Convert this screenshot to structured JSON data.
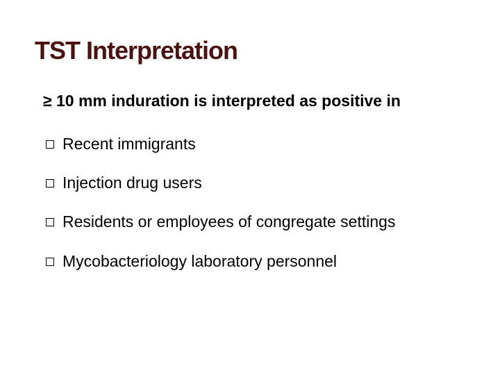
{
  "title": "TST Interpretation",
  "subheading": "≥ 10 mm induration is interpreted as positive in",
  "bullets": {
    "item0": "Recent immigrants",
    "item1": "Injection drug users",
    "item2": "Residents or employees of congregate settings",
    "item3": "Mycobacteriology laboratory personnel"
  },
  "colors": {
    "title_color": "#4a1212",
    "text_color": "#000000",
    "background": "#ffffff"
  },
  "fonts": {
    "title_fontsize": 36,
    "body_fontsize": 23,
    "title_family": "Trebuchet MS",
    "body_family": "Verdana"
  }
}
